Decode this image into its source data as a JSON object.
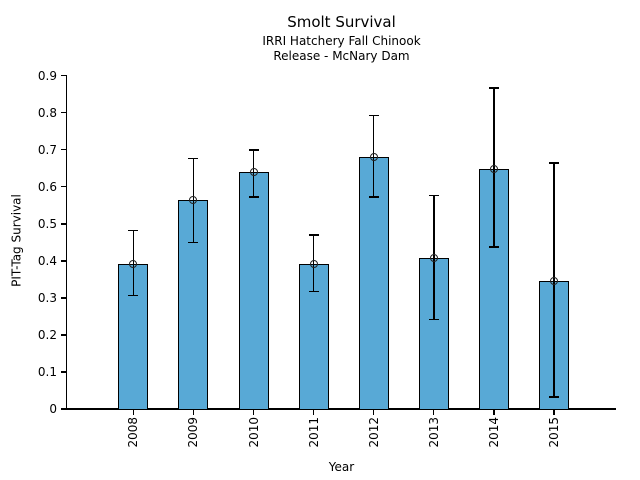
{
  "chart_data": {
    "type": "bar",
    "title": "Smolt Survival",
    "subtitle1": "IRRI Hatchery Fall Chinook",
    "subtitle2": "Release - McNary Dam",
    "xlabel": "Year",
    "ylabel": "PIT-Tag Survival",
    "categories": [
      "2008",
      "2009",
      "2010",
      "2011",
      "2012",
      "2013",
      "2014",
      "2015"
    ],
    "values": [
      0.39,
      0.562,
      0.637,
      0.39,
      0.678,
      0.405,
      0.647,
      0.345
    ],
    "error_low": [
      0.305,
      0.448,
      0.57,
      0.315,
      0.57,
      0.24,
      0.435,
      0.03
    ],
    "error_high": [
      0.48,
      0.675,
      0.698,
      0.468,
      0.79,
      0.575,
      0.865,
      0.663
    ],
    "ylim": [
      0,
      0.9
    ],
    "yticks": [
      0,
      0.1,
      0.2,
      0.3,
      0.4,
      0.5,
      0.6,
      0.7,
      0.8,
      0.9
    ],
    "ytick_labels": [
      "0",
      "0.1",
      "0.2",
      "0.3",
      "0.4",
      "0.5",
      "0.6",
      "0.7",
      "0.8",
      "0.9"
    ],
    "grid": false,
    "legend": null,
    "marker": "open-circle",
    "colors": {
      "bar_fill": "#58a9d6",
      "bar_edge": "#000000",
      "error_bar": "#000000",
      "marker_edge": "#222222",
      "text": "#000000",
      "background": "#ffffff"
    }
  }
}
